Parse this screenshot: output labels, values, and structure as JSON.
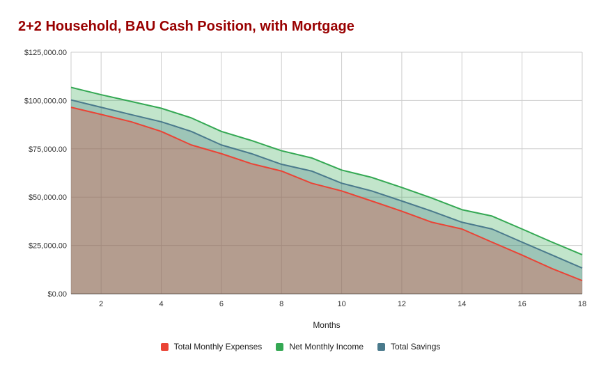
{
  "chart_data": {
    "type": "area",
    "title": "2+2 Household, BAU Cash Position, with Mortgage",
    "xlabel": "Months",
    "ylabel": "",
    "x": [
      1,
      2,
      3,
      4,
      5,
      6,
      7,
      8,
      9,
      10,
      11,
      12,
      13,
      14,
      15,
      16,
      17,
      18
    ],
    "xticks": [
      "2",
      "4",
      "6",
      "8",
      "10",
      "12",
      "14",
      "16",
      "18"
    ],
    "yticks": [
      "$0.00",
      "$25,000.00",
      "$50,000.00",
      "$75,000.00",
      "$100,000.00",
      "$125,000.00"
    ],
    "ylim": [
      0,
      125000
    ],
    "xlim": [
      1,
      18
    ],
    "grid": true,
    "legend_position": "bottom",
    "series": [
      {
        "name": "Total Monthly Expenses",
        "color": "#ea4335",
        "values": [
          96500,
          92800,
          89000,
          84000,
          77000,
          72500,
          67300,
          63500,
          57200,
          53200,
          48000,
          42700,
          37000,
          33500,
          26700,
          20000,
          13000,
          6800
        ]
      },
      {
        "name": "Net Monthly Income",
        "color": "#34a853",
        "values": [
          106800,
          103000,
          99500,
          96000,
          91000,
          84000,
          79300,
          74000,
          70300,
          64000,
          60200,
          55000,
          49500,
          43500,
          40200,
          33500,
          26700,
          20200
        ]
      },
      {
        "name": "Total Savings",
        "color": "#4a7a8c",
        "values": [
          100300,
          96500,
          92700,
          89000,
          84000,
          77000,
          72500,
          67000,
          63500,
          57200,
          53200,
          48000,
          42700,
          37000,
          33500,
          26700,
          20000,
          13300
        ]
      }
    ]
  }
}
